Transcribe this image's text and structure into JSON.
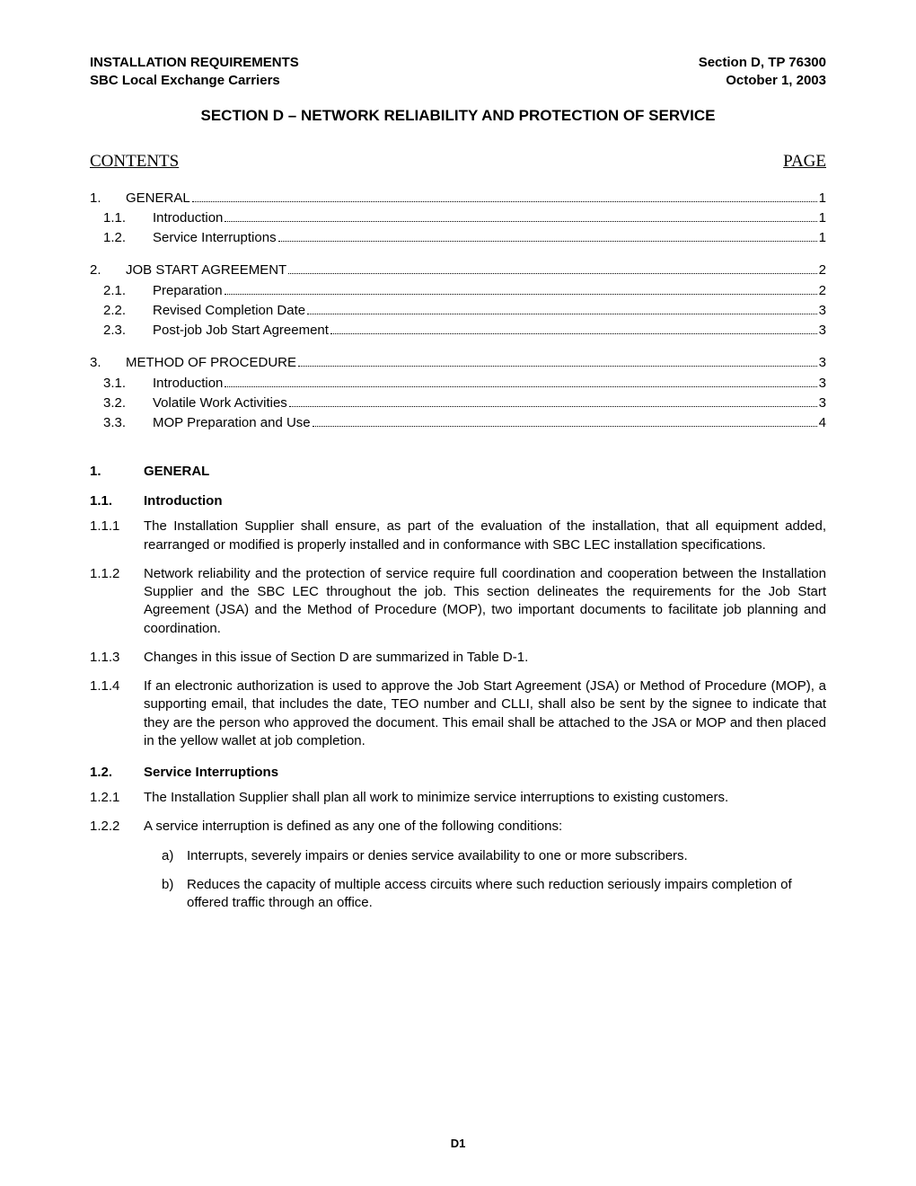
{
  "header": {
    "left1": "INSTALLATION REQUIREMENTS",
    "right1": "Section D, TP 76300",
    "left2": "SBC Local Exchange Carriers",
    "right2": "October 1, 2003"
  },
  "section_title": "SECTION D – NETWORK RELIABILITY AND PROTECTION OF SERVICE",
  "contents_label": "CONTENTS",
  "page_label": "PAGE",
  "toc": [
    {
      "type": "main",
      "num": "1.",
      "title": "GENERAL",
      "page": "1"
    },
    {
      "type": "sub",
      "num": "1.1.",
      "title": "Introduction",
      "page": "1"
    },
    {
      "type": "sub",
      "num": "1.2.",
      "title": "Service Interruptions",
      "page": "1"
    },
    {
      "type": "gap"
    },
    {
      "type": "main",
      "num": "2.",
      "title": "JOB START AGREEMENT",
      "page": "2"
    },
    {
      "type": "sub",
      "num": "2.1.",
      "title": "Preparation",
      "page": "2"
    },
    {
      "type": "sub",
      "num": "2.2.",
      "title": "Revised Completion Date",
      "page": "3"
    },
    {
      "type": "sub",
      "num": "2.3.",
      "title": "Post-job Job Start Agreement",
      "page": "3"
    },
    {
      "type": "gap"
    },
    {
      "type": "main",
      "num": "3.",
      "title": "METHOD OF PROCEDURE",
      "page": "3"
    },
    {
      "type": "sub",
      "num": "3.1.",
      "title": "Introduction",
      "page": "3"
    },
    {
      "type": "sub",
      "num": "3.2.",
      "title": "Volatile Work Activities",
      "page": "3"
    },
    {
      "type": "sub",
      "num": "3.3.",
      "title": "MOP Preparation and Use",
      "page": "4"
    }
  ],
  "body": {
    "h1": {
      "num": "1.",
      "title": "GENERAL"
    },
    "h11": {
      "num": "1.1.",
      "title": "Introduction"
    },
    "p111": {
      "num": "1.1.1",
      "text": "The Installation Supplier shall ensure, as part of the evaluation of the installation, that all equipment added, rearranged or modified is properly installed and in conformance with SBC LEC installation specifications."
    },
    "p112": {
      "num": "1.1.2",
      "text": "Network reliability and the protection of service require full coordination and cooperation between the Installation Supplier and the SBC LEC throughout the job.  This section delineates the requirements for the Job Start Agreement (JSA) and the Method of Procedure (MOP), two important documents to facilitate job planning and coordination."
    },
    "p113": {
      "num": "1.1.3",
      "text": "Changes in this issue of Section D are summarized in Table D-1."
    },
    "p114": {
      "num": "1.1.4",
      "text": "If an electronic authorization is used to approve the Job Start Agreement (JSA) or Method of Procedure (MOP), a supporting email, that includes the date, TEO number and CLLI, shall also be sent by the signee to indicate that they are the person who approved the document. This email shall be attached to the JSA or MOP and then placed in the yellow wallet at job completion."
    },
    "h12": {
      "num": "1.2.",
      "title": "Service Interruptions"
    },
    "p121": {
      "num": "1.2.1",
      "text": "The Installation Supplier shall plan all work to minimize service interruptions to existing customers."
    },
    "p122": {
      "num": "1.2.2",
      "text": "A service interruption is defined as any one of the following conditions:"
    },
    "p122a": {
      "letter": "a)",
      "text": "Interrupts, severely impairs or denies service availability to one or more subscribers."
    },
    "p122b": {
      "letter": "b)",
      "text": "Reduces the capacity of multiple access circuits where such reduction seriously impairs completion of offered traffic through an office."
    }
  },
  "footer": "D1"
}
